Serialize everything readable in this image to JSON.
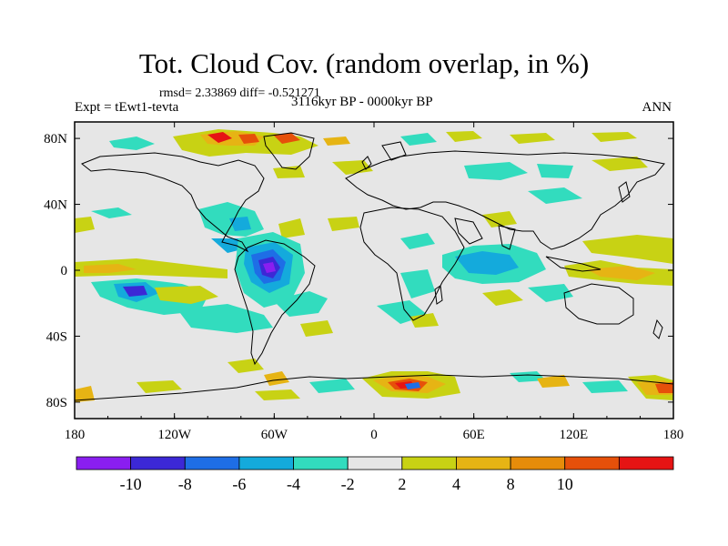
{
  "title": "Tot. Cloud Cov. (random overlap, in %)",
  "stats": "rmsd= 2.33869 diff= -0.521271",
  "experiment": "Expt = tEwt1-tevta",
  "period": "3116kyr BP - 0000kyr BP",
  "season": "ANN",
  "map": {
    "background_color": "#e6e6e6",
    "coastline_color": "#000000",
    "lon_range": [
      -180,
      180
    ],
    "lat_range": [
      -90,
      90
    ],
    "lat_ticks": [
      {
        "value": 80,
        "label": "80N"
      },
      {
        "value": 40,
        "label": "40N"
      },
      {
        "value": 0,
        "label": "0"
      },
      {
        "value": -40,
        "label": "40S"
      },
      {
        "value": -80,
        "label": "80S"
      }
    ],
    "lon_ticks": [
      {
        "value": -180,
        "label": "180"
      },
      {
        "value": -120,
        "label": "120W"
      },
      {
        "value": -60,
        "label": "60W"
      },
      {
        "value": 0,
        "label": "0"
      },
      {
        "value": 60,
        "label": "60E"
      },
      {
        "value": 120,
        "label": "120E"
      },
      {
        "value": 180,
        "label": "180"
      }
    ]
  },
  "colorbar": {
    "colors": [
      "#8a1ef0",
      "#3c28d6",
      "#1e6ee6",
      "#14aadc",
      "#32dcbe",
      "#e6e6e6",
      "#c8d214",
      "#e6b414",
      "#e68c0a",
      "#e6500a",
      "#e61414"
    ],
    "labels": [
      {
        "boundary": 1,
        "label": "-10"
      },
      {
        "boundary": 2,
        "label": "-8"
      },
      {
        "boundary": 3,
        "label": "-6"
      },
      {
        "boundary": 4,
        "label": "-4"
      },
      {
        "boundary": 5,
        "label": "-2"
      },
      {
        "boundary": 6,
        "label": "2"
      },
      {
        "boundary": 7,
        "label": "4"
      },
      {
        "boundary": 8,
        "label": "8"
      },
      {
        "boundary": 9,
        "label": "10"
      }
    ]
  }
}
